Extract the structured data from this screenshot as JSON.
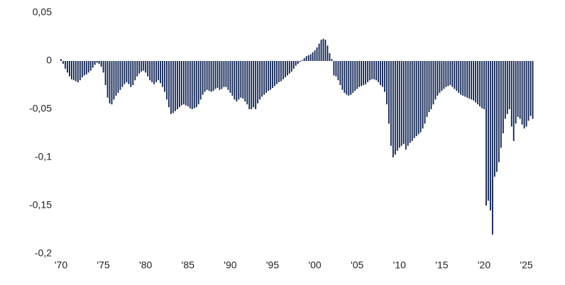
{
  "chart_data": {
    "type": "bar",
    "color": "#0b1f4f",
    "ylim": [
      -0.2,
      0.05
    ],
    "yticks": [
      {
        "value": 0.05,
        "label": "0,05"
      },
      0,
      {
        "value": -0.05,
        "label": "-0,05"
      },
      {
        "value": -0.1,
        "label": "-0,1"
      },
      {
        "value": -0.15,
        "label": "-0,15"
      },
      {
        "value": -0.2,
        "label": "-0,2"
      }
    ],
    "categories": [
      "'70",
      null,
      null,
      null,
      null,
      null,
      null,
      null,
      null,
      null,
      null,
      null,
      null,
      null,
      null,
      null,
      null,
      null,
      null,
      null,
      "'75",
      null,
      null,
      null,
      null,
      null,
      null,
      null,
      null,
      null,
      null,
      null,
      null,
      null,
      null,
      null,
      null,
      null,
      null,
      null,
      "'80",
      null,
      null,
      null,
      null,
      null,
      null,
      null,
      null,
      null,
      null,
      null,
      null,
      null,
      null,
      null,
      null,
      null,
      null,
      null,
      "'85",
      null,
      null,
      null,
      null,
      null,
      null,
      null,
      null,
      null,
      null,
      null,
      null,
      null,
      null,
      null,
      null,
      null,
      null,
      null,
      "'90",
      null,
      null,
      null,
      null,
      null,
      null,
      null,
      null,
      null,
      null,
      null,
      null,
      null,
      null,
      null,
      null,
      null,
      null,
      null,
      "'95",
      null,
      null,
      null,
      null,
      null,
      null,
      null,
      null,
      null,
      null,
      null,
      null,
      null,
      null,
      null,
      null,
      null,
      null,
      null,
      "'00",
      null,
      null,
      null,
      null,
      null,
      null,
      null,
      null,
      null,
      null,
      null,
      null,
      null,
      null,
      null,
      null,
      null,
      null,
      null,
      "'05",
      null,
      null,
      null,
      null,
      null,
      null,
      null,
      null,
      null,
      null,
      null,
      null,
      null,
      null,
      null,
      null,
      null,
      null,
      null,
      "'10",
      null,
      null,
      null,
      null,
      null,
      null,
      null,
      null,
      null,
      null,
      null,
      null,
      null,
      null,
      null,
      null,
      null,
      null,
      null,
      "'15",
      null,
      null,
      null,
      null,
      null,
      null,
      null,
      null,
      null,
      null,
      null,
      null,
      null,
      null,
      null,
      null,
      null,
      null,
      null,
      "'20",
      null,
      null,
      null,
      null,
      null,
      null,
      null,
      null,
      null,
      null,
      null,
      null,
      null,
      null,
      null,
      null,
      null,
      null,
      null,
      "'25",
      null,
      null,
      null
    ],
    "values": [
      0.002,
      -0.003,
      -0.008,
      -0.012,
      -0.016,
      -0.019,
      -0.02,
      -0.021,
      -0.022,
      -0.02,
      -0.017,
      -0.015,
      -0.014,
      -0.012,
      -0.01,
      -0.007,
      -0.004,
      -0.002,
      -0.003,
      -0.006,
      -0.012,
      -0.025,
      -0.038,
      -0.044,
      -0.045,
      -0.04,
      -0.036,
      -0.033,
      -0.03,
      -0.027,
      -0.024,
      -0.022,
      -0.024,
      -0.027,
      -0.025,
      -0.02,
      -0.016,
      -0.013,
      -0.011,
      -0.01,
      -0.012,
      -0.016,
      -0.02,
      -0.022,
      -0.024,
      -0.022,
      -0.02,
      -0.023,
      -0.027,
      -0.032,
      -0.04,
      -0.048,
      -0.055,
      -0.054,
      -0.052,
      -0.05,
      -0.048,
      -0.046,
      -0.045,
      -0.046,
      -0.047,
      -0.049,
      -0.05,
      -0.049,
      -0.048,
      -0.045,
      -0.04,
      -0.035,
      -0.032,
      -0.03,
      -0.031,
      -0.032,
      -0.031,
      -0.029,
      -0.028,
      -0.03,
      -0.029,
      -0.027,
      -0.027,
      -0.03,
      -0.033,
      -0.036,
      -0.04,
      -0.042,
      -0.04,
      -0.038,
      -0.039,
      -0.042,
      -0.045,
      -0.05,
      -0.05,
      -0.048,
      -0.05,
      -0.044,
      -0.04,
      -0.037,
      -0.035,
      -0.033,
      -0.031,
      -0.03,
      -0.028,
      -0.026,
      -0.024,
      -0.022,
      -0.021,
      -0.019,
      -0.017,
      -0.015,
      -0.013,
      -0.011,
      -0.008,
      -0.005,
      -0.003,
      -0.001,
      0.001,
      0.003,
      0.005,
      0.006,
      0.007,
      0.009,
      0.011,
      0.014,
      0.018,
      0.022,
      0.023,
      0.022,
      0.016,
      0.008,
      0.002,
      -0.015,
      -0.016,
      -0.02,
      -0.025,
      -0.03,
      -0.033,
      -0.035,
      -0.036,
      -0.035,
      -0.033,
      -0.031,
      -0.029,
      -0.027,
      -0.026,
      -0.025,
      -0.024,
      -0.022,
      -0.02,
      -0.019,
      -0.019,
      -0.02,
      -0.022,
      -0.025,
      -0.027,
      -0.032,
      -0.045,
      -0.065,
      -0.088,
      -0.1,
      -0.097,
      -0.093,
      -0.09,
      -0.088,
      -0.086,
      -0.092,
      -0.088,
      -0.085,
      -0.083,
      -0.08,
      -0.078,
      -0.076,
      -0.074,
      -0.07,
      -0.065,
      -0.058,
      -0.053,
      -0.05,
      -0.045,
      -0.04,
      -0.036,
      -0.033,
      -0.031,
      -0.029,
      -0.027,
      -0.026,
      -0.025,
      -0.027,
      -0.029,
      -0.031,
      -0.033,
      -0.035,
      -0.036,
      -0.037,
      -0.038,
      -0.039,
      -0.04,
      -0.041,
      -0.043,
      -0.045,
      -0.047,
      -0.049,
      -0.05,
      -0.15,
      -0.145,
      -0.155,
      -0.18,
      -0.12,
      -0.115,
      -0.105,
      -0.09,
      -0.075,
      -0.06,
      -0.055,
      -0.05,
      -0.068,
      -0.083,
      -0.065,
      -0.058,
      -0.06,
      -0.066,
      -0.07,
      -0.068,
      -0.062,
      -0.057,
      -0.06
    ]
  }
}
